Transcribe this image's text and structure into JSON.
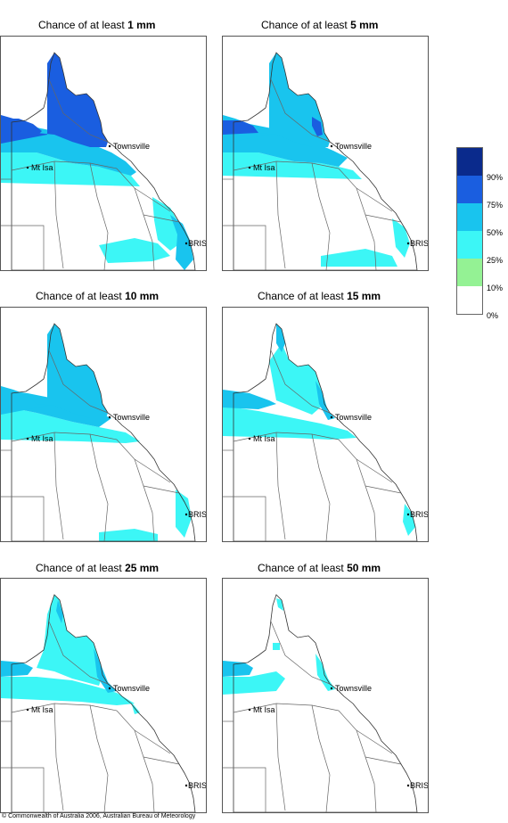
{
  "panels": [
    {
      "title_prefix": "Chance of at least ",
      "amount": "1 mm",
      "level": 1
    },
    {
      "title_prefix": "Chance of at least ",
      "amount": "5 mm",
      "level": 5
    },
    {
      "title_prefix": "Chance of at least ",
      "amount": "10 mm",
      "level": 10
    },
    {
      "title_prefix": "Chance of at least ",
      "amount": "15 mm",
      "level": 15
    },
    {
      "title_prefix": "Chance of at least ",
      "amount": "25 mm",
      "level": 25
    },
    {
      "title_prefix": "Chance of at least ",
      "amount": "50 mm",
      "level": 50
    }
  ],
  "places": {
    "townsville": "Townsville",
    "mt_isa": "Mt Isa",
    "brisbane": "BRIS"
  },
  "legend": {
    "colors": [
      "#0a2a8c",
      "#1a5ee0",
      "#19c4ee",
      "#3cf6f6",
      "#94f294",
      "#ffffff"
    ],
    "labels": [
      "90%",
      "75%",
      "50%",
      "25%",
      "10%",
      "0%"
    ]
  },
  "copyright": "© Commonwealth of Australia 2006, Australian Bureau of Meteorology"
}
